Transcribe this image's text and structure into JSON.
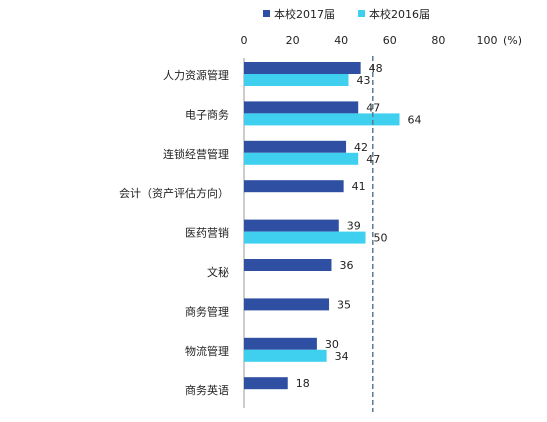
{
  "chart_data": {
    "type": "bar",
    "orientation": "horizontal",
    "categories": [
      "人力资源管理",
      "电子商务",
      "连锁经营管理",
      "会计（资产评估方向）",
      "医药营销",
      "文秘",
      "商务管理",
      "物流管理",
      "商务英语"
    ],
    "series": [
      {
        "name": "本校2017届",
        "color": "#2E4FA2",
        "values": [
          48,
          47,
          42,
          41,
          39,
          36,
          35,
          30,
          18
        ]
      },
      {
        "name": "本校2016届",
        "color": "#3FCFEF",
        "values": [
          43,
          64,
          47,
          null,
          50,
          null,
          null,
          34,
          null
        ]
      }
    ],
    "xlim": [
      0,
      100
    ],
    "x_ticks": [
      "0",
      "20",
      "40",
      "60",
      "80",
      "100"
    ],
    "x_unit": "(%)",
    "reference_line": {
      "value": 53,
      "style": "dashed",
      "color": "#5A7A8C"
    },
    "legend_position": "top"
  }
}
